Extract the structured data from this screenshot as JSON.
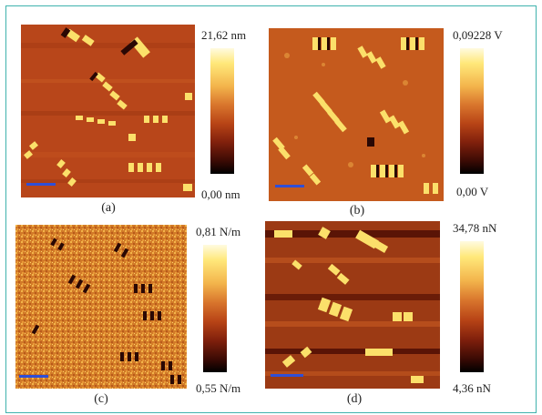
{
  "panels": [
    {
      "id": "a",
      "caption": "(a)",
      "max_label": "21,62 nm",
      "min_label": "0,00 nm"
    },
    {
      "id": "b",
      "caption": "(b)",
      "max_label": "0,09228 V",
      "min_label": "0,00 V"
    },
    {
      "id": "c",
      "caption": "(c)",
      "max_label": "0,81 N/m",
      "min_label": "0,55 N/m"
    },
    {
      "id": "d",
      "caption": "(d)",
      "max_label": "34,78 nN",
      "min_label": "4,36 nN"
    }
  ],
  "colors": {
    "frame": "#3fb2ad",
    "scalebar": "#2f4fd6",
    "colormap_top": "#fffbe0",
    "colormap_bottom": "#000000"
  }
}
